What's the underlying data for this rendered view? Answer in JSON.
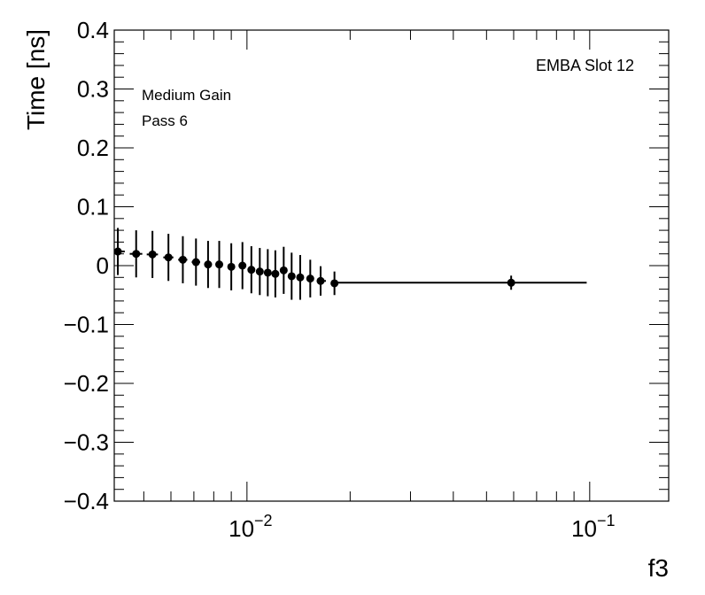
{
  "chart_data": {
    "type": "scatter",
    "title": "",
    "xlabel": "f3",
    "ylabel": "Time [ns]",
    "xscale": "log",
    "xlim": [
      0.0041,
      0.17
    ],
    "ylim": [
      -0.4,
      0.4
    ],
    "grid": false,
    "yticks": [
      {
        "value": 0.4,
        "label": "0.4"
      },
      {
        "value": 0.3,
        "label": "0.3"
      },
      {
        "value": 0.2,
        "label": "0.2"
      },
      {
        "value": 0.1,
        "label": "0.1"
      },
      {
        "value": 0.0,
        "label": "0"
      },
      {
        "value": -0.1,
        "label": "−0.1"
      },
      {
        "value": -0.2,
        "label": "−0.2"
      },
      {
        "value": -0.3,
        "label": "−0.3"
      },
      {
        "value": -0.4,
        "label": "−0.4"
      }
    ],
    "xticks_major": [
      {
        "value": 0.01,
        "base": "10",
        "exp": "−2"
      },
      {
        "value": 0.1,
        "base": "10",
        "exp": "−1"
      }
    ],
    "annotations": {
      "left_line1": "Medium Gain",
      "left_line2": "Pass 6",
      "right": "EMBA Slot 12"
    },
    "points": [
      {
        "x": 0.0042,
        "y": 0.024,
        "xlo": 0.0041,
        "xhi": 0.0044,
        "yerr": 0.04
      },
      {
        "x": 0.00475,
        "y": 0.02,
        "xlo": 0.00455,
        "xhi": 0.00495,
        "yerr": 0.04
      },
      {
        "x": 0.0053,
        "y": 0.019,
        "xlo": 0.0051,
        "xhi": 0.0055,
        "yerr": 0.04
      },
      {
        "x": 0.0059,
        "y": 0.014,
        "xlo": 0.0057,
        "xhi": 0.0061,
        "yerr": 0.04
      },
      {
        "x": 0.0065,
        "y": 0.01,
        "xlo": 0.0063,
        "xhi": 0.0067,
        "yerr": 0.04
      },
      {
        "x": 0.0071,
        "y": 0.006,
        "xlo": 0.0069,
        "xhi": 0.0073,
        "yerr": 0.04
      },
      {
        "x": 0.0077,
        "y": 0.002,
        "xlo": 0.0075,
        "xhi": 0.0079,
        "yerr": 0.04
      },
      {
        "x": 0.0083,
        "y": 0.002,
        "xlo": 0.0081,
        "xhi": 0.0085,
        "yerr": 0.04
      },
      {
        "x": 0.009,
        "y": -0.002,
        "xlo": 0.0088,
        "xhi": 0.0092,
        "yerr": 0.04
      },
      {
        "x": 0.0097,
        "y": 0.0,
        "xlo": 0.0095,
        "xhi": 0.0099,
        "yerr": 0.04
      },
      {
        "x": 0.0103,
        "y": -0.007,
        "xlo": 0.0101,
        "xhi": 0.0105,
        "yerr": 0.04
      },
      {
        "x": 0.0109,
        "y": -0.01,
        "xlo": 0.0107,
        "xhi": 0.0111,
        "yerr": 0.04
      },
      {
        "x": 0.0115,
        "y": -0.012,
        "xlo": 0.0113,
        "xhi": 0.0117,
        "yerr": 0.04
      },
      {
        "x": 0.0121,
        "y": -0.014,
        "xlo": 0.0119,
        "xhi": 0.0123,
        "yerr": 0.04
      },
      {
        "x": 0.0128,
        "y": -0.008,
        "xlo": 0.0126,
        "xhi": 0.013,
        "yerr": 0.04
      },
      {
        "x": 0.0135,
        "y": -0.018,
        "xlo": 0.0133,
        "xhi": 0.0137,
        "yerr": 0.04
      },
      {
        "x": 0.0143,
        "y": -0.02,
        "xlo": 0.014,
        "xhi": 0.0146,
        "yerr": 0.038
      },
      {
        "x": 0.0153,
        "y": -0.022,
        "xlo": 0.015,
        "xhi": 0.0156,
        "yerr": 0.032
      },
      {
        "x": 0.0164,
        "y": -0.026,
        "xlo": 0.016,
        "xhi": 0.017,
        "yerr": 0.025
      },
      {
        "x": 0.018,
        "y": -0.03,
        "xlo": 0.0176,
        "xhi": 0.0184,
        "yerr": 0.02
      },
      {
        "x": 0.059,
        "y": -0.029,
        "xlo": 0.0184,
        "xhi": 0.098,
        "yerr": 0.012
      }
    ]
  }
}
